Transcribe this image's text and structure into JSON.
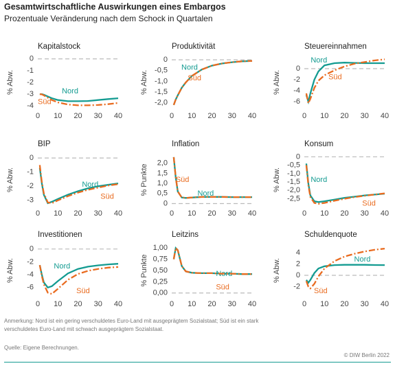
{
  "header": {
    "title": "Gesamtwirtschaftliche Auswirkungen eines Embargos",
    "subtitle": "Prozentuale Veränderung nach dem Schock in Quartalen"
  },
  "footer": {
    "note": "Anmerkung: Nord ist ein gering verschuldetes Euro-Land mit ausgeprägtem Sozialstaat; Süd ist ein stark verschuldetes Euro-Land mit schwach ausgeprägtem Sozialstaat.",
    "source": "Quelle: Eigene Berechnungen.",
    "copyright": "© DIW Berlin 2022"
  },
  "chart_data": [
    {
      "type": "line",
      "title": "Kapitalstock",
      "ylabel": "% Abw.",
      "x": [
        1,
        2,
        3,
        5,
        7,
        10,
        15,
        20,
        25,
        30,
        35,
        40
      ],
      "xlim": [
        0,
        40
      ],
      "xticks": [
        0,
        10,
        20,
        30,
        40
      ],
      "ylim": [
        -4.1,
        0.1
      ],
      "yticks": [
        0,
        -1,
        -2,
        -3,
        -4
      ],
      "zero_line": true,
      "series": [
        {
          "name": "Nord",
          "color": "#139b91",
          "values": [
            -3.0,
            -3.0,
            -3.05,
            -3.2,
            -3.35,
            -3.5,
            -3.6,
            -3.6,
            -3.58,
            -3.5,
            -3.42,
            -3.35
          ]
        },
        {
          "name": "Süd",
          "color": "#e96b1f",
          "values": [
            -3.0,
            -3.02,
            -3.1,
            -3.3,
            -3.5,
            -3.7,
            -3.88,
            -3.95,
            -3.95,
            -3.92,
            -3.85,
            -3.75
          ]
        }
      ]
    },
    {
      "type": "line",
      "title": "Produktivität",
      "ylabel": "% Abw.",
      "x": [
        1,
        2,
        3,
        5,
        7,
        10,
        15,
        20,
        25,
        30,
        35,
        40
      ],
      "xlim": [
        0,
        40
      ],
      "xticks": [
        0,
        10,
        20,
        30,
        40
      ],
      "ylim": [
        -2.2,
        0.1
      ],
      "yticks": [
        0,
        {
          "value": -0.5,
          "label": "-0,5"
        },
        {
          "value": -1,
          "label": "-1,0"
        },
        {
          "value": -1.5,
          "label": "-1,5"
        },
        {
          "value": -2,
          "label": "-2,0"
        }
      ],
      "zero_line": true,
      "series": [
        {
          "name": "Nord",
          "color": "#139b91",
          "values": [
            -2.1,
            -1.85,
            -1.65,
            -1.3,
            -1.05,
            -0.75,
            -0.45,
            -0.27,
            -0.17,
            -0.11,
            -0.07,
            -0.05
          ]
        },
        {
          "name": "Süd",
          "color": "#e96b1f",
          "values": [
            -2.1,
            -1.85,
            -1.65,
            -1.3,
            -1.05,
            -0.75,
            -0.45,
            -0.27,
            -0.17,
            -0.11,
            -0.07,
            -0.05
          ]
        }
      ]
    },
    {
      "type": "line",
      "title": "Steuereinnahmen",
      "ylabel": "% Abw.",
      "x": [
        1,
        2,
        3,
        5,
        7,
        10,
        15,
        20,
        25,
        30,
        35,
        40
      ],
      "xlim": [
        0,
        40
      ],
      "xticks": [
        0,
        10,
        20,
        30,
        40
      ],
      "ylim": [
        -7,
        2
      ],
      "yticks": [
        0,
        -2,
        -4,
        -6
      ],
      "zero_line": true,
      "series": [
        {
          "name": "Nord",
          "color": "#139b91",
          "values": [
            -4.8,
            -6.0,
            -4.5,
            -2.0,
            -0.5,
            0.6,
            1.0,
            1.1,
            1.05,
            1.0,
            1.0,
            1.0
          ]
        },
        {
          "name": "Süd",
          "color": "#e96b1f",
          "values": [
            -4.5,
            -6.3,
            -5.5,
            -3.5,
            -2.2,
            -1.2,
            -0.3,
            0.4,
            0.9,
            1.2,
            1.5,
            1.7
          ]
        }
      ]
    },
    {
      "type": "line",
      "title": "BIP",
      "ylabel": "% Abw.",
      "x": [
        1,
        2,
        3,
        5,
        7,
        10,
        15,
        20,
        25,
        30,
        35,
        40
      ],
      "xlim": [
        0,
        40
      ],
      "xticks": [
        0,
        10,
        20,
        30,
        40
      ],
      "ylim": [
        -3.3,
        0.2
      ],
      "yticks": [
        0,
        -1,
        -2,
        -3
      ],
      "zero_line": true,
      "series": [
        {
          "name": "Nord",
          "color": "#139b91",
          "values": [
            -0.7,
            -1.8,
            -2.6,
            -3.2,
            -3.1,
            -2.9,
            -2.6,
            -2.35,
            -2.15,
            -2.0,
            -1.9,
            -1.8
          ]
        },
        {
          "name": "Süd",
          "color": "#e96b1f",
          "values": [
            -0.5,
            -1.7,
            -2.5,
            -3.15,
            -3.2,
            -3.0,
            -2.7,
            -2.45,
            -2.25,
            -2.1,
            -1.95,
            -1.85
          ]
        }
      ]
    },
    {
      "type": "line",
      "title": "Inflation",
      "ylabel": "% Punkte",
      "x": [
        1,
        2,
        3,
        5,
        7,
        10,
        15,
        20,
        25,
        30,
        35,
        40
      ],
      "xlim": [
        0,
        40
      ],
      "xticks": [
        0,
        10,
        20,
        30,
        40
      ],
      "ylim": [
        -0.05,
        2.4
      ],
      "yticks": [
        0,
        {
          "value": 0.5,
          "label": "0,5"
        },
        {
          "value": 1,
          "label": "1,0"
        },
        {
          "value": 1.5,
          "label": "1,5"
        },
        {
          "value": 2,
          "label": "2,0"
        }
      ],
      "zero_line": true,
      "series": [
        {
          "name": "Nord",
          "color": "#139b91",
          "values": [
            2.3,
            1.3,
            0.6,
            0.3,
            0.28,
            0.3,
            0.33,
            0.33,
            0.33,
            0.32,
            0.32,
            0.32
          ]
        },
        {
          "name": "Süd",
          "color": "#e96b1f",
          "values": [
            2.3,
            1.3,
            0.6,
            0.3,
            0.28,
            0.3,
            0.33,
            0.33,
            0.33,
            0.32,
            0.32,
            0.32
          ]
        }
      ]
    },
    {
      "type": "line",
      "title": "Konsum",
      "ylabel": "% Abw.",
      "x": [
        1,
        2,
        3,
        5,
        7,
        10,
        15,
        20,
        25,
        30,
        35,
        40
      ],
      "xlim": [
        0,
        40
      ],
      "xticks": [
        0,
        10,
        20,
        30,
        40
      ],
      "ylim": [
        -2.85,
        0.1
      ],
      "yticks": [
        0,
        {
          "value": -0.5,
          "label": "-0,5"
        },
        {
          "value": -1,
          "label": "-1,0"
        },
        {
          "value": -1.5,
          "label": "-1,5"
        },
        {
          "value": -2,
          "label": "-2,0"
        },
        {
          "value": -2.5,
          "label": "-2,5"
        }
      ],
      "zero_line": true,
      "series": [
        {
          "name": "Nord",
          "color": "#139b91",
          "values": [
            -0.4,
            -1.6,
            -2.3,
            -2.65,
            -2.7,
            -2.65,
            -2.55,
            -2.45,
            -2.38,
            -2.3,
            -2.25,
            -2.2
          ]
        },
        {
          "name": "Süd",
          "color": "#e96b1f",
          "values": [
            -0.5,
            -1.7,
            -2.4,
            -2.75,
            -2.8,
            -2.75,
            -2.62,
            -2.5,
            -2.4,
            -2.32,
            -2.25,
            -2.18
          ]
        }
      ]
    },
    {
      "type": "line",
      "title": "Investitionen",
      "ylabel": "% Abw.",
      "x": [
        1,
        2,
        3,
        5,
        7,
        10,
        15,
        20,
        25,
        30,
        35,
        40
      ],
      "xlim": [
        0,
        40
      ],
      "xticks": [
        0,
        10,
        20,
        30,
        40
      ],
      "ylim": [
        -7.2,
        0.5
      ],
      "yticks": [
        0,
        -2,
        -4,
        -6
      ],
      "zero_line": true,
      "series": [
        {
          "name": "Nord",
          "color": "#139b91",
          "values": [
            -2.5,
            -4.0,
            -5.2,
            -6.0,
            -5.8,
            -5.0,
            -3.8,
            -3.1,
            -2.75,
            -2.55,
            -2.4,
            -2.3
          ]
        },
        {
          "name": "Süd",
          "color": "#e96b1f",
          "values": [
            -2.5,
            -4.2,
            -5.5,
            -6.8,
            -7.0,
            -6.2,
            -4.8,
            -3.9,
            -3.4,
            -3.1,
            -2.9,
            -2.8
          ]
        }
      ]
    },
    {
      "type": "line",
      "title": "Leitzins",
      "ylabel": "% Punkte",
      "x": [
        1,
        2,
        3,
        5,
        7,
        10,
        15,
        20,
        25,
        30,
        35,
        40
      ],
      "xlim": [
        0,
        40
      ],
      "xticks": [
        0,
        10,
        20,
        30,
        40
      ],
      "ylim": [
        -0.05,
        1.05
      ],
      "yticks": [
        {
          "value": 0,
          "label": "0,00"
        },
        {
          "value": 0.25,
          "label": "0,25"
        },
        {
          "value": 0.5,
          "label": "0,50"
        },
        {
          "value": 0.75,
          "label": "0,75"
        },
        {
          "value": 1,
          "label": "1,00"
        }
      ],
      "zero_line": true,
      "series": [
        {
          "name": "Nord",
          "color": "#139b91",
          "values": [
            0.75,
            1.0,
            0.95,
            0.6,
            0.48,
            0.45,
            0.44,
            0.44,
            0.43,
            0.43,
            0.42,
            0.42
          ]
        },
        {
          "name": "Süd",
          "color": "#e96b1f",
          "values": [
            0.75,
            1.0,
            0.95,
            0.6,
            0.48,
            0.45,
            0.44,
            0.44,
            0.43,
            0.43,
            0.42,
            0.42
          ]
        }
      ]
    },
    {
      "type": "line",
      "title": "Schuldenquote",
      "ylabel": "% Abw.",
      "x": [
        1,
        2,
        3,
        5,
        7,
        10,
        15,
        20,
        25,
        30,
        35,
        40
      ],
      "xlim": [
        0,
        40
      ],
      "xticks": [
        0,
        10,
        20,
        30,
        40
      ],
      "ylim": [
        -3.5,
        5.2
      ],
      "yticks": [
        -2,
        0,
        2,
        4
      ],
      "zero_line": true,
      "series": [
        {
          "name": "Nord",
          "color": "#139b91",
          "values": [
            -0.8,
            -1.3,
            -0.8,
            0.4,
            1.2,
            1.6,
            1.8,
            1.85,
            1.85,
            1.85,
            1.82,
            1.8
          ]
        },
        {
          "name": "Süd",
          "color": "#e96b1f",
          "values": [
            -1,
            -2,
            -2.3,
            -1.5,
            -0.2,
            1.2,
            2.5,
            3.3,
            3.8,
            4.2,
            4.5,
            4.7
          ]
        }
      ]
    }
  ]
}
